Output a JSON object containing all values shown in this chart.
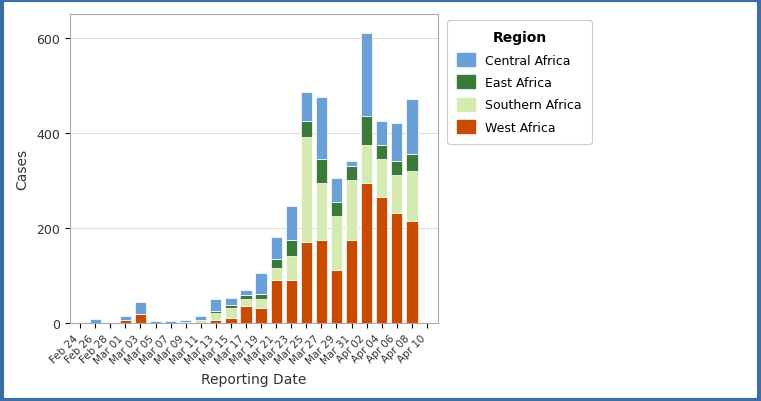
{
  "dates": [
    "Feb 24",
    "Feb 26",
    "Feb 28",
    "Mar 01",
    "Mar 03",
    "Mar 05",
    "Mar 07",
    "Mar 09",
    "Mar 11",
    "Mar 13",
    "Mar 15",
    "Mar 17",
    "Mar 19",
    "Mar 21",
    "Mar 23",
    "Mar 25",
    "Mar 27",
    "Mar 29",
    "Mar 31",
    "Apr 02",
    "Apr 04",
    "Apr 06",
    "Apr 08",
    "Apr 10"
  ],
  "west_africa": [
    0,
    0,
    0,
    5,
    18,
    0,
    0,
    0,
    0,
    5,
    10,
    35,
    30,
    90,
    90,
    170,
    175,
    110,
    175,
    295,
    265,
    230,
    215,
    0
  ],
  "southern_africa": [
    0,
    0,
    0,
    0,
    0,
    0,
    0,
    2,
    5,
    15,
    20,
    15,
    20,
    25,
    50,
    220,
    120,
    115,
    125,
    80,
    80,
    80,
    105,
    0
  ],
  "east_africa": [
    0,
    0,
    0,
    0,
    0,
    0,
    0,
    0,
    0,
    5,
    8,
    8,
    10,
    20,
    35,
    35,
    50,
    30,
    30,
    60,
    30,
    30,
    35,
    0
  ],
  "central_africa": [
    0,
    8,
    0,
    10,
    25,
    4,
    4,
    4,
    10,
    25,
    15,
    10,
    45,
    45,
    70,
    60,
    130,
    50,
    10,
    175,
    50,
    80,
    115,
    0
  ],
  "colors": {
    "west_africa": "#c94b00",
    "southern_africa": "#d4eab0",
    "east_africa": "#3a7a3a",
    "central_africa": "#6a9fd8"
  },
  "legend_labels": [
    "Central Africa",
    "East Africa",
    "Southern Africa",
    "West Africa"
  ],
  "legend_colors": [
    "#6a9fd8",
    "#3a7a3a",
    "#d4eab0",
    "#c94b00"
  ],
  "xlabel": "Reporting Date",
  "ylabel": "Cases",
  "ylim": [
    0,
    650
  ],
  "yticks": [
    0,
    200,
    400,
    600
  ],
  "background_color": "#ffffff",
  "plot_bg_color": "#ffffff",
  "border_color": "#3a6ea5",
  "grid_color": "#e0e0e0",
  "spine_color": "#aaaaaa",
  "figsize": [
    7.61,
    4.02
  ],
  "dpi": 100
}
